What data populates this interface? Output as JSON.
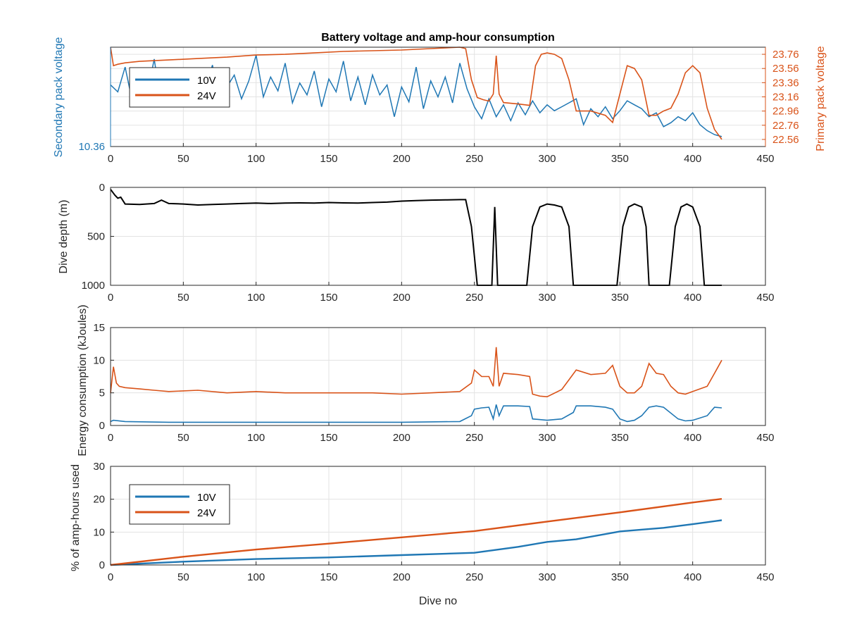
{
  "title": "Battery voltage and amp-hour consumption",
  "colors": {
    "blue": "#1f77b4",
    "orange": "#d95319",
    "black": "#000000",
    "grid": "#e3e3e3",
    "axis": "#262626"
  },
  "chart_data": [
    {
      "type": "line",
      "title": "Battery voltage and amp-hour consumption",
      "xlim": [
        0,
        450
      ],
      "xticks": [
        0,
        50,
        100,
        150,
        200,
        250,
        300,
        350,
        400,
        450
      ],
      "ylabel_left": "Secondary pack voltage",
      "ylabel_right": "Primary pack voltage",
      "yticks_left": [
        "10.36"
      ],
      "yticks_right": [
        "22.56",
        "22.76",
        "22.96",
        "23.16",
        "23.36",
        "23.56",
        "23.76"
      ],
      "ylim_right": [
        22.46,
        23.86
      ],
      "legend": {
        "placement": "top-left",
        "entries": [
          "10V",
          "24V"
        ]
      },
      "series": [
        {
          "name": "10V",
          "axis": "left",
          "note_values_normalized_0_1": true,
          "x": [
            0,
            5,
            10,
            15,
            20,
            25,
            30,
            35,
            40,
            45,
            50,
            55,
            60,
            65,
            70,
            75,
            80,
            85,
            90,
            95,
            100,
            105,
            110,
            115,
            120,
            125,
            130,
            135,
            140,
            145,
            150,
            155,
            160,
            165,
            170,
            175,
            180,
            185,
            190,
            195,
            200,
            205,
            210,
            215,
            220,
            225,
            230,
            235,
            240,
            245,
            250,
            255,
            260,
            265,
            270,
            275,
            280,
            285,
            290,
            295,
            300,
            305,
            310,
            315,
            320,
            325,
            330,
            335,
            340,
            345,
            350,
            355,
            360,
            365,
            370,
            375,
            380,
            385,
            390,
            395,
            400,
            405,
            410,
            415,
            420
          ],
          "values": [
            0.62,
            0.55,
            0.8,
            0.45,
            0.7,
            0.52,
            0.88,
            0.4,
            0.66,
            0.5,
            0.74,
            0.42,
            0.68,
            0.58,
            0.82,
            0.45,
            0.6,
            0.72,
            0.48,
            0.66,
            0.92,
            0.5,
            0.7,
            0.56,
            0.84,
            0.44,
            0.64,
            0.52,
            0.76,
            0.4,
            0.68,
            0.55,
            0.86,
            0.46,
            0.7,
            0.42,
            0.72,
            0.52,
            0.62,
            0.3,
            0.6,
            0.45,
            0.8,
            0.38,
            0.66,
            0.5,
            0.7,
            0.44,
            0.84,
            0.58,
            0.4,
            0.28,
            0.48,
            0.3,
            0.42,
            0.26,
            0.44,
            0.32,
            0.46,
            0.34,
            0.42,
            0.36,
            0.4,
            0.44,
            0.48,
            0.22,
            0.38,
            0.3,
            0.4,
            0.28,
            0.36,
            0.46,
            0.42,
            0.38,
            0.3,
            0.34,
            0.2,
            0.24,
            0.3,
            0.26,
            0.34,
            0.22,
            0.16,
            0.12,
            0.1
          ]
        },
        {
          "name": "24V",
          "axis": "right",
          "x": [
            0,
            2,
            5,
            10,
            20,
            40,
            60,
            80,
            100,
            120,
            140,
            160,
            180,
            200,
            220,
            240,
            244,
            248,
            252,
            256,
            260,
            263,
            265,
            267,
            270,
            280,
            288,
            292,
            296,
            300,
            305,
            310,
            315,
            320,
            330,
            340,
            345,
            350,
            355,
            360,
            365,
            370,
            375,
            380,
            385,
            390,
            395,
            400,
            405,
            410,
            415,
            420
          ],
          "values": [
            23.86,
            23.6,
            23.62,
            23.64,
            23.66,
            23.68,
            23.7,
            23.72,
            23.75,
            23.76,
            23.78,
            23.8,
            23.81,
            23.82,
            23.84,
            23.86,
            23.84,
            23.4,
            23.15,
            23.12,
            23.1,
            23.2,
            23.74,
            23.2,
            23.08,
            23.06,
            23.04,
            23.6,
            23.76,
            23.78,
            23.76,
            23.7,
            23.4,
            22.96,
            22.96,
            22.9,
            22.8,
            23.2,
            23.6,
            23.56,
            23.4,
            22.9,
            22.9,
            22.96,
            23.0,
            23.2,
            23.5,
            23.6,
            23.5,
            23.0,
            22.7,
            22.56
          ]
        }
      ]
    },
    {
      "type": "line",
      "xlim": [
        0,
        450
      ],
      "ylim": [
        0,
        1000
      ],
      "ylabel": "Dive depth (m)",
      "yticks": [
        "0",
        "500",
        "1000"
      ],
      "xticks": [
        0,
        50,
        100,
        150,
        200,
        250,
        300,
        350,
        400,
        450
      ],
      "series": [
        {
          "x": [
            0,
            3,
            5,
            7,
            10,
            20,
            30,
            35,
            40,
            50,
            60,
            70,
            80,
            90,
            100,
            110,
            120,
            130,
            140,
            150,
            160,
            170,
            180,
            190,
            200,
            210,
            220,
            230,
            240,
            244,
            248,
            252,
            255,
            260,
            262,
            264,
            266,
            268,
            270,
            280,
            286,
            290,
            295,
            300,
            305,
            310,
            315,
            318,
            330,
            345,
            348,
            352,
            356,
            360,
            365,
            368,
            370,
            380,
            384,
            388,
            392,
            396,
            400,
            405,
            408,
            420
          ],
          "values": [
            20,
            80,
            110,
            100,
            170,
            175,
            165,
            130,
            165,
            170,
            180,
            175,
            170,
            165,
            160,
            165,
            160,
            158,
            160,
            155,
            158,
            160,
            155,
            150,
            140,
            135,
            130,
            128,
            125,
            125,
            400,
            1000,
            1000,
            1000,
            1000,
            200,
            1000,
            1000,
            1000,
            1000,
            1000,
            400,
            200,
            170,
            180,
            200,
            400,
            1000,
            1000,
            1000,
            1000,
            400,
            200,
            170,
            200,
            400,
            1000,
            1000,
            1000,
            400,
            200,
            170,
            200,
            400,
            1000,
            1000
          ]
        }
      ]
    },
    {
      "type": "line",
      "xlim": [
        0,
        450
      ],
      "ylim": [
        0,
        15
      ],
      "ylabel": "Energy consumption (kJoules)",
      "yticks": [
        "0",
        "5",
        "10",
        "15"
      ],
      "xticks": [
        0,
        50,
        100,
        150,
        200,
        250,
        300,
        350,
        400,
        450
      ],
      "series": [
        {
          "name": "24V",
          "x": [
            0,
            2,
            4,
            6,
            10,
            20,
            30,
            40,
            60,
            80,
            100,
            120,
            140,
            160,
            180,
            200,
            220,
            240,
            248,
            250,
            255,
            260,
            263,
            265,
            267,
            270,
            280,
            288,
            290,
            295,
            300,
            310,
            315,
            320,
            330,
            340,
            345,
            350,
            355,
            360,
            365,
            370,
            375,
            380,
            385,
            390,
            395,
            400,
            410,
            415,
            420
          ],
          "values": [
            5.0,
            9.0,
            6.5,
            6.0,
            5.8,
            5.6,
            5.4,
            5.2,
            5.4,
            5.0,
            5.2,
            5.0,
            5.0,
            5.0,
            5.0,
            4.8,
            5.0,
            5.2,
            6.5,
            8.5,
            7.5,
            7.5,
            6.0,
            12.0,
            6.0,
            8.0,
            7.8,
            7.5,
            4.8,
            4.5,
            4.4,
            5.5,
            7.0,
            8.5,
            7.8,
            8.0,
            9.2,
            6.0,
            5.0,
            5.0,
            6.0,
            9.5,
            8.0,
            7.8,
            6.0,
            5.0,
            4.8,
            5.2,
            6.0,
            8.0,
            10.0
          ]
        },
        {
          "name": "10V",
          "x": [
            0,
            2,
            10,
            40,
            80,
            120,
            160,
            200,
            240,
            248,
            250,
            255,
            260,
            263,
            265,
            267,
            270,
            280,
            288,
            290,
            300,
            310,
            318,
            320,
            330,
            340,
            345,
            350,
            355,
            360,
            365,
            370,
            375,
            380,
            390,
            395,
            400,
            410,
            415,
            420
          ],
          "values": [
            0.6,
            0.8,
            0.6,
            0.5,
            0.5,
            0.5,
            0.5,
            0.5,
            0.6,
            1.5,
            2.5,
            2.7,
            2.8,
            1.0,
            3.2,
            1.5,
            3.0,
            3.0,
            2.9,
            1.0,
            0.8,
            1.0,
            2.0,
            3.0,
            3.0,
            2.8,
            2.5,
            1.0,
            0.6,
            0.8,
            1.5,
            2.8,
            3.0,
            2.8,
            1.0,
            0.7,
            0.8,
            1.5,
            2.8,
            2.7
          ]
        }
      ]
    },
    {
      "type": "line",
      "xlim": [
        0,
        450
      ],
      "ylim": [
        0,
        30
      ],
      "ylabel": "% of amp-hours used",
      "xlabel": "Dive no",
      "yticks": [
        "0",
        "10",
        "20",
        "30"
      ],
      "xticks": [
        0,
        50,
        100,
        150,
        200,
        250,
        300,
        350,
        400,
        450
      ],
      "legend": {
        "placement": "top-left",
        "entries": [
          "10V",
          "24V"
        ]
      },
      "series": [
        {
          "name": "10V",
          "x": [
            0,
            50,
            100,
            150,
            200,
            250,
            280,
            300,
            320,
            350,
            380,
            400,
            420
          ],
          "values": [
            0,
            1.0,
            1.8,
            2.3,
            3.0,
            3.7,
            5.5,
            7.0,
            7.8,
            10.2,
            11.3,
            12.4,
            13.6
          ]
        },
        {
          "name": "24V",
          "x": [
            0,
            50,
            100,
            150,
            200,
            250,
            300,
            350,
            400,
            420
          ],
          "values": [
            0,
            2.5,
            4.7,
            6.5,
            8.4,
            10.3,
            13.2,
            16.0,
            19.0,
            20.1
          ]
        }
      ]
    }
  ]
}
